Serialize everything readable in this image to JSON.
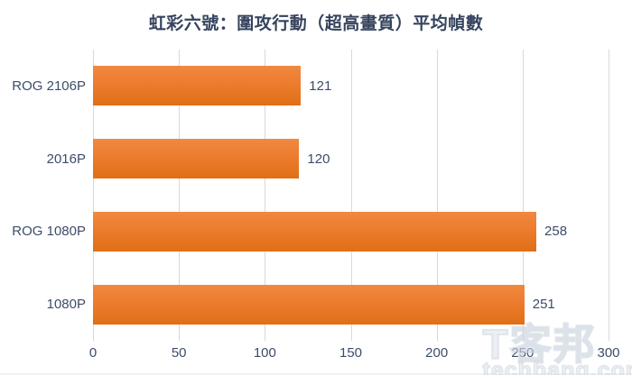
{
  "chart_data": {
    "type": "bar",
    "orientation": "horizontal",
    "title": "虹彩六號：圍攻行動（超高畫質）平均幀數",
    "categories": [
      "ROG 2106P",
      "2016P",
      "ROG 1080P",
      "1080P"
    ],
    "values": [
      121,
      120,
      258,
      251
    ],
    "value_labels": [
      "121",
      "120",
      "258",
      "251"
    ],
    "x_ticks": [
      "0",
      "50",
      "100",
      "150",
      "200",
      "250",
      "300"
    ],
    "xlim": [
      0,
      300
    ],
    "xlabel": "",
    "ylabel": "",
    "grid": "vertical",
    "legend": "none",
    "bar_color": "#ED7D31",
    "bar_gradient_top": "#F0893F",
    "bar_gradient_bottom": "#E06F15",
    "gridline_color": "#D9D9D9",
    "text_color": "#3C4D68",
    "title_color": "#36435E",
    "background": "#FFFFFF"
  },
  "watermark": {
    "logo": "T客邦",
    "domain": "techbang.com"
  }
}
